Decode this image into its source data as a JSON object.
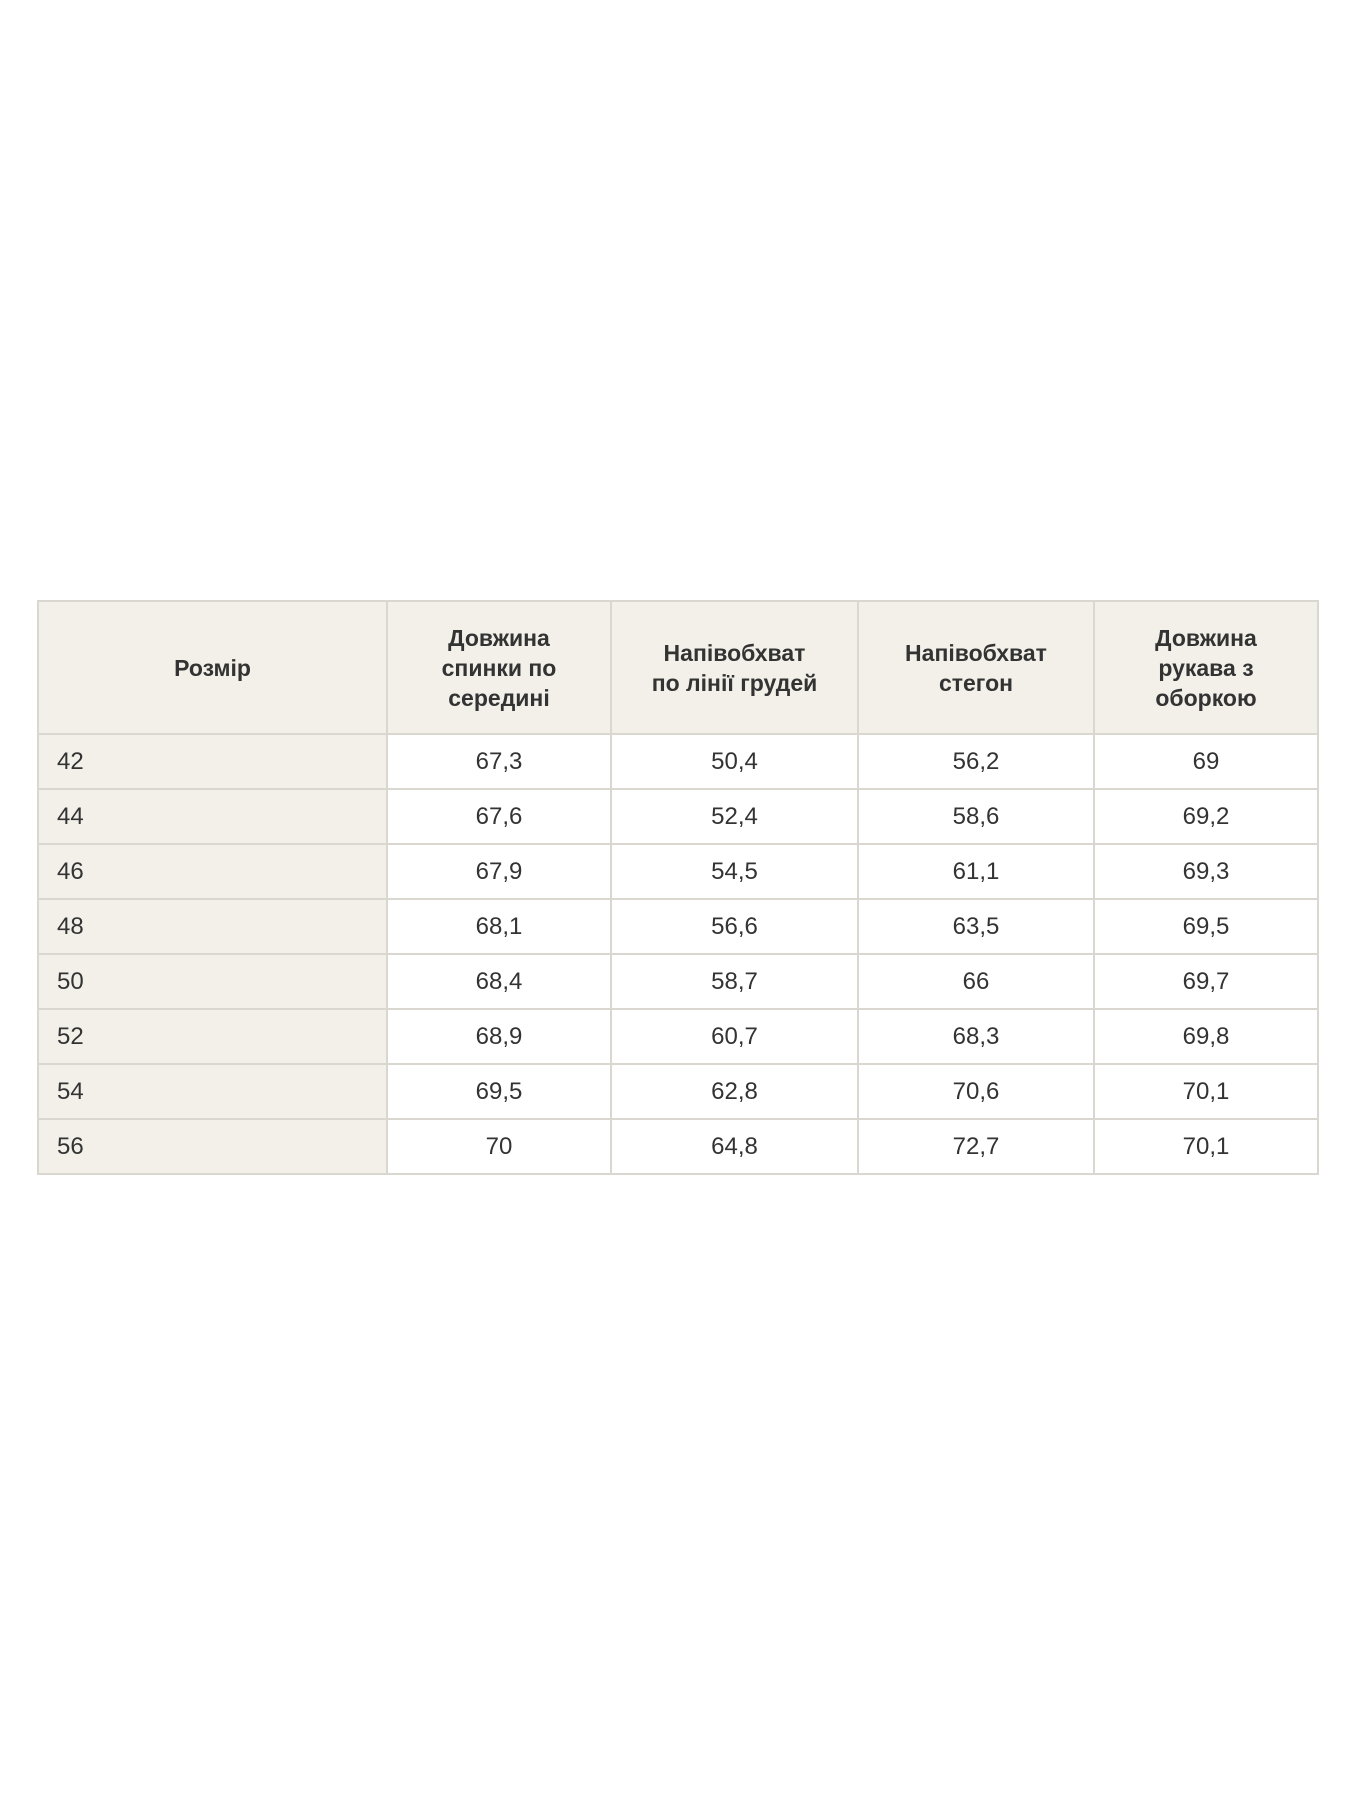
{
  "page": {
    "background_color": "#ffffff",
    "text_color": "#333333"
  },
  "table": {
    "title": "size-chart",
    "header_background_color": "#f2f0e8",
    "first_column_background_color": "#f2f0e8",
    "cell_background_color": "#ffffff",
    "border_color": "#d9d7d0",
    "headers": [
      "Розмір",
      "Довжина\nспинки по\nсередині",
      "Напівобхват\nпо лінії грудей",
      "Напівобхват\nстегон",
      "Довжина\nрукава з\nоборкою"
    ],
    "rows": [
      [
        "42",
        "67,3",
        "50,4",
        "56,2",
        "69"
      ],
      [
        "44",
        "67,6",
        "52,4",
        "58,6",
        "69,2"
      ],
      [
        "46",
        "67,9",
        "54,5",
        "61,1",
        "69,3"
      ],
      [
        "48",
        "68,1",
        "56,6",
        "63,5",
        "69,5"
      ],
      [
        "50",
        "68,4",
        "58,7",
        "66",
        "69,7"
      ],
      [
        "52",
        "68,9",
        "60,7",
        "68,3",
        "69,8"
      ],
      [
        "54",
        "69,5",
        "62,8",
        "70,6",
        "70,1"
      ],
      [
        "56",
        "70",
        "64,8",
        "72,7",
        "70,1"
      ]
    ]
  }
}
